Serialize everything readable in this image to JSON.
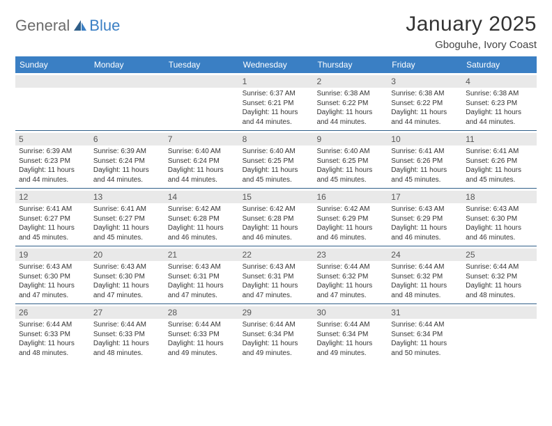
{
  "logo": {
    "word1": "General",
    "word2": "Blue",
    "icon_color": "#2f5e88"
  },
  "title": "January 2025",
  "location": "Gboguhe, Ivory Coast",
  "colors": {
    "header_bg": "#3a7fc4",
    "header_text": "#ffffff",
    "week_divider": "#2f5e88",
    "daynum_bg": "#e9e9e9",
    "body_text": "#333333",
    "page_bg": "#ffffff",
    "logo_gray": "#6b6b6b"
  },
  "typography": {
    "title_fontsize": 30,
    "location_fontsize": 15,
    "dayheader_fontsize": 12,
    "daynum_fontsize": 12,
    "detail_fontsize": 10
  },
  "day_headers": [
    "Sunday",
    "Monday",
    "Tuesday",
    "Wednesday",
    "Thursday",
    "Friday",
    "Saturday"
  ],
  "weeks": [
    [
      null,
      null,
      null,
      {
        "n": "1",
        "sr": "6:37 AM",
        "ss": "6:21 PM",
        "dl": "11 hours and 44 minutes."
      },
      {
        "n": "2",
        "sr": "6:38 AM",
        "ss": "6:22 PM",
        "dl": "11 hours and 44 minutes."
      },
      {
        "n": "3",
        "sr": "6:38 AM",
        "ss": "6:22 PM",
        "dl": "11 hours and 44 minutes."
      },
      {
        "n": "4",
        "sr": "6:38 AM",
        "ss": "6:23 PM",
        "dl": "11 hours and 44 minutes."
      }
    ],
    [
      {
        "n": "5",
        "sr": "6:39 AM",
        "ss": "6:23 PM",
        "dl": "11 hours and 44 minutes."
      },
      {
        "n": "6",
        "sr": "6:39 AM",
        "ss": "6:24 PM",
        "dl": "11 hours and 44 minutes."
      },
      {
        "n": "7",
        "sr": "6:40 AM",
        "ss": "6:24 PM",
        "dl": "11 hours and 44 minutes."
      },
      {
        "n": "8",
        "sr": "6:40 AM",
        "ss": "6:25 PM",
        "dl": "11 hours and 45 minutes."
      },
      {
        "n": "9",
        "sr": "6:40 AM",
        "ss": "6:25 PM",
        "dl": "11 hours and 45 minutes."
      },
      {
        "n": "10",
        "sr": "6:41 AM",
        "ss": "6:26 PM",
        "dl": "11 hours and 45 minutes."
      },
      {
        "n": "11",
        "sr": "6:41 AM",
        "ss": "6:26 PM",
        "dl": "11 hours and 45 minutes."
      }
    ],
    [
      {
        "n": "12",
        "sr": "6:41 AM",
        "ss": "6:27 PM",
        "dl": "11 hours and 45 minutes."
      },
      {
        "n": "13",
        "sr": "6:41 AM",
        "ss": "6:27 PM",
        "dl": "11 hours and 45 minutes."
      },
      {
        "n": "14",
        "sr": "6:42 AM",
        "ss": "6:28 PM",
        "dl": "11 hours and 46 minutes."
      },
      {
        "n": "15",
        "sr": "6:42 AM",
        "ss": "6:28 PM",
        "dl": "11 hours and 46 minutes."
      },
      {
        "n": "16",
        "sr": "6:42 AM",
        "ss": "6:29 PM",
        "dl": "11 hours and 46 minutes."
      },
      {
        "n": "17",
        "sr": "6:43 AM",
        "ss": "6:29 PM",
        "dl": "11 hours and 46 minutes."
      },
      {
        "n": "18",
        "sr": "6:43 AM",
        "ss": "6:30 PM",
        "dl": "11 hours and 46 minutes."
      }
    ],
    [
      {
        "n": "19",
        "sr": "6:43 AM",
        "ss": "6:30 PM",
        "dl": "11 hours and 47 minutes."
      },
      {
        "n": "20",
        "sr": "6:43 AM",
        "ss": "6:30 PM",
        "dl": "11 hours and 47 minutes."
      },
      {
        "n": "21",
        "sr": "6:43 AM",
        "ss": "6:31 PM",
        "dl": "11 hours and 47 minutes."
      },
      {
        "n": "22",
        "sr": "6:43 AM",
        "ss": "6:31 PM",
        "dl": "11 hours and 47 minutes."
      },
      {
        "n": "23",
        "sr": "6:44 AM",
        "ss": "6:32 PM",
        "dl": "11 hours and 47 minutes."
      },
      {
        "n": "24",
        "sr": "6:44 AM",
        "ss": "6:32 PM",
        "dl": "11 hours and 48 minutes."
      },
      {
        "n": "25",
        "sr": "6:44 AM",
        "ss": "6:32 PM",
        "dl": "11 hours and 48 minutes."
      }
    ],
    [
      {
        "n": "26",
        "sr": "6:44 AM",
        "ss": "6:33 PM",
        "dl": "11 hours and 48 minutes."
      },
      {
        "n": "27",
        "sr": "6:44 AM",
        "ss": "6:33 PM",
        "dl": "11 hours and 48 minutes."
      },
      {
        "n": "28",
        "sr": "6:44 AM",
        "ss": "6:33 PM",
        "dl": "11 hours and 49 minutes."
      },
      {
        "n": "29",
        "sr": "6:44 AM",
        "ss": "6:34 PM",
        "dl": "11 hours and 49 minutes."
      },
      {
        "n": "30",
        "sr": "6:44 AM",
        "ss": "6:34 PM",
        "dl": "11 hours and 49 minutes."
      },
      {
        "n": "31",
        "sr": "6:44 AM",
        "ss": "6:34 PM",
        "dl": "11 hours and 50 minutes."
      },
      null
    ]
  ],
  "labels": {
    "sunrise": "Sunrise:",
    "sunset": "Sunset:",
    "daylight": "Daylight:"
  }
}
